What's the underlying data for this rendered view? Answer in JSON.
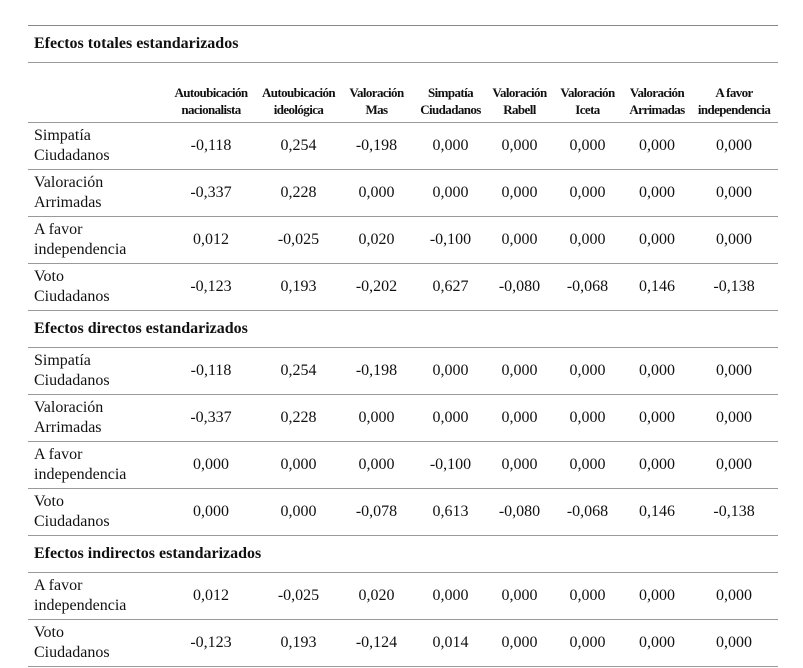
{
  "columns": [
    "Autoubicación nacionalista",
    "Autoubicación ideológica",
    "Valoración Mas",
    "Simpatía Ciudadanos",
    "Valoración Rabell",
    "Valoración Iceta",
    "Valoración Arrimadas",
    "A favor independencia"
  ],
  "column_lines": [
    [
      "Autoubicación",
      "nacionalista"
    ],
    [
      "Autoubicación",
      "ideológica"
    ],
    [
      "Valoración",
      "Mas"
    ],
    [
      "Simpatía",
      "Ciudadanos"
    ],
    [
      "Valoración",
      "Rabell"
    ],
    [
      "Valoración",
      "Iceta"
    ],
    [
      "Valoración",
      "Arrimadas"
    ],
    [
      "A favor",
      "independencia"
    ]
  ],
  "sections": [
    {
      "title": "Efectos totales estandarizados",
      "rows": [
        {
          "label": [
            "Simpatía",
            "Ciudadanos"
          ],
          "values": [
            "-0,118",
            "0,254",
            "-0,198",
            "0,000",
            "0,000",
            "0,000",
            "0,000",
            "0,000"
          ]
        },
        {
          "label": [
            "Valoración",
            "Arrimadas"
          ],
          "values": [
            "-0,337",
            "0,228",
            "0,000",
            "0,000",
            "0,000",
            "0,000",
            "0,000",
            "0,000"
          ]
        },
        {
          "label": [
            "A favor",
            "independencia"
          ],
          "values": [
            "0,012",
            "-0,025",
            "0,020",
            "-0,100",
            "0,000",
            "0,000",
            "0,000",
            "0,000"
          ]
        },
        {
          "label": [
            "Voto",
            "Ciudadanos"
          ],
          "values": [
            "-0,123",
            "0,193",
            "-0,202",
            "0,627",
            "-0,080",
            "-0,068",
            "0,146",
            "-0,138"
          ]
        }
      ]
    },
    {
      "title": "Efectos directos estandarizados",
      "rows": [
        {
          "label": [
            "Simpatía",
            "Ciudadanos"
          ],
          "values": [
            "-0,118",
            "0,254",
            "-0,198",
            "0,000",
            "0,000",
            "0,000",
            "0,000",
            "0,000"
          ]
        },
        {
          "label": [
            "Valoración",
            "Arrimadas"
          ],
          "values": [
            "-0,337",
            "0,228",
            "0,000",
            "0,000",
            "0,000",
            "0,000",
            "0,000",
            "0,000"
          ]
        },
        {
          "label": [
            "A favor",
            "independencia"
          ],
          "values": [
            "0,000",
            "0,000",
            "0,000",
            "-0,100",
            "0,000",
            "0,000",
            "0,000",
            "0,000"
          ]
        },
        {
          "label": [
            "Voto",
            "Ciudadanos"
          ],
          "values": [
            "0,000",
            "0,000",
            "-0,078",
            "0,613",
            "-0,080",
            "-0,068",
            "0,146",
            "-0,138"
          ]
        }
      ]
    },
    {
      "title": "Efectos indirectos estandarizados",
      "rows": [
        {
          "label": [
            "A favor",
            "independencia"
          ],
          "values": [
            "0,012",
            "-0,025",
            "0,020",
            "0,000",
            "0,000",
            "0,000",
            "0,000",
            "0,000"
          ]
        },
        {
          "label": [
            "Voto",
            "Ciudadanos"
          ],
          "values": [
            "-0,123",
            "0,193",
            "-0,124",
            "0,014",
            "0,000",
            "0,000",
            "0,000",
            "0,000"
          ]
        }
      ]
    }
  ]
}
